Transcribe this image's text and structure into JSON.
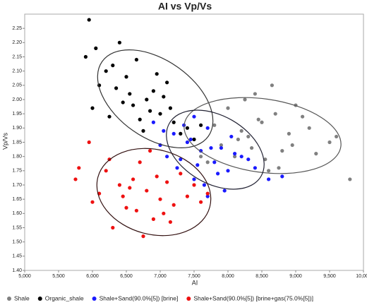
{
  "chart_data": {
    "type": "scatter",
    "title": "AI vs Vp/Vs",
    "x_label": "AI",
    "y_label": "Vp/Vs",
    "xlim": [
      5000,
      10000
    ],
    "xticks": [
      {
        "value": 5000,
        "label": "5,000"
      },
      {
        "value": 5500,
        "label": "5,500"
      },
      {
        "value": 6000,
        "label": "6,000"
      },
      {
        "value": 6500,
        "label": "6,500"
      },
      {
        "value": 7000,
        "label": "7,000"
      },
      {
        "value": 7500,
        "label": "7,500"
      },
      {
        "value": 8000,
        "label": "8,000"
      },
      {
        "value": 8500,
        "label": "8,500"
      },
      {
        "value": 9000,
        "label": "9,000"
      },
      {
        "value": 9500,
        "label": "9,500"
      },
      {
        "value": 10000,
        "label": "10,000"
      }
    ],
    "ylim": [
      1.4,
      2.3
    ],
    "yticks": [
      {
        "value": 1.4,
        "label": "1.40"
      },
      1.45,
      {
        "value": 1.5,
        "label": "1.50"
      },
      1.55,
      {
        "value": 1.6,
        "label": "1.60"
      },
      1.65,
      {
        "value": 1.7,
        "label": "1.70"
      },
      1.75,
      {
        "value": 1.8,
        "label": "1.80"
      },
      1.85,
      {
        "value": 1.9,
        "label": "1.90"
      },
      1.95,
      {
        "value": 2.0,
        "label": "2.00"
      },
      2.05,
      {
        "value": 2.1,
        "label": "2.10"
      },
      2.15,
      {
        "value": 2.2,
        "label": "2.20"
      },
      2.25
    ],
    "series": [
      {
        "name": "Shale",
        "color": "#808080",
        "x": [
          8300,
          8500,
          8100,
          8700,
          7900,
          8900,
          9200,
          8400,
          8600,
          7700,
          8000,
          9500,
          9800,
          8200,
          8800,
          9000,
          7500,
          8350,
          8650,
          9300,
          8450,
          7800,
          8550,
          9100,
          8150,
          8750,
          9600,
          8250,
          8950,
          7600
        ],
        "values": [
          1.87,
          1.92,
          1.8,
          1.95,
          1.84,
          1.88,
          1.9,
          2.02,
          1.75,
          1.78,
          1.97,
          1.85,
          1.72,
          1.89,
          1.82,
          1.98,
          1.86,
          1.83,
          2.05,
          1.81,
          1.93,
          1.91,
          1.79,
          1.94,
          1.86,
          1.76,
          1.87,
          2.0,
          1.84,
          1.8
        ]
      },
      {
        "name": "Organic_shale",
        "color": "#000000",
        "x": [
          6800,
          6500,
          7000,
          6300,
          7200,
          6100,
          5900,
          6600,
          6900,
          7400,
          6400,
          6700,
          7100,
          6000,
          6200,
          7300,
          6550,
          6850,
          7500,
          5950,
          6450,
          7050,
          6650,
          6250,
          7600,
          6950,
          6350,
          6750,
          7150,
          6050
        ],
        "values": [
          2.0,
          2.08,
          1.95,
          2.12,
          1.92,
          2.05,
          2.15,
          1.98,
          2.03,
          1.9,
          2.2,
          1.93,
          2.06,
          1.97,
          2.1,
          1.88,
          2.02,
          1.96,
          1.86,
          2.28,
          1.99,
          2.01,
          2.14,
          1.94,
          1.91,
          2.09,
          2.04,
          1.89,
          1.97,
          2.18
        ]
      },
      {
        "name": "Shale+Sand(90.0%[5]) [brine]",
        "color": "#1a1aff",
        "x": [
          7600,
          7400,
          7800,
          7200,
          8000,
          7000,
          8200,
          7500,
          7700,
          7300,
          7900,
          8400,
          6900,
          7650,
          7450,
          8100,
          7550,
          7850,
          7100,
          8600,
          7350,
          7750,
          7950,
          8300,
          7250,
          7050,
          8050,
          7700,
          8800,
          7500
        ],
        "values": [
          1.82,
          1.85,
          1.78,
          1.88,
          1.75,
          1.84,
          1.8,
          1.72,
          1.9,
          1.79,
          1.83,
          1.76,
          1.92,
          1.7,
          1.86,
          1.81,
          1.77,
          1.74,
          1.8,
          1.72,
          1.91,
          1.83,
          1.68,
          1.79,
          1.76,
          1.89,
          1.87,
          1.66,
          1.73,
          1.94
        ]
      },
      {
        "name": "Shale+Sand(90.0%[5]) [brine+gas(75.0%[5])]",
        "color": "#ee1111",
        "x": [
          6800,
          6600,
          7000,
          6400,
          7200,
          6200,
          6900,
          6700,
          7400,
          6500,
          5800,
          6100,
          7100,
          6300,
          7600,
          6850,
          6550,
          7050,
          5950,
          6750,
          7300,
          6450,
          6950,
          6650,
          7500,
          6250,
          7150,
          6000,
          5750,
          7700
        ],
        "values": [
          1.68,
          1.72,
          1.65,
          1.7,
          1.63,
          1.75,
          1.58,
          1.78,
          1.66,
          1.62,
          1.76,
          1.67,
          1.71,
          1.55,
          1.64,
          1.82,
          1.69,
          1.6,
          1.85,
          1.52,
          1.74,
          1.66,
          1.73,
          1.61,
          1.7,
          1.79,
          1.57,
          1.64,
          1.72,
          1.67
        ]
      }
    ]
  }
}
